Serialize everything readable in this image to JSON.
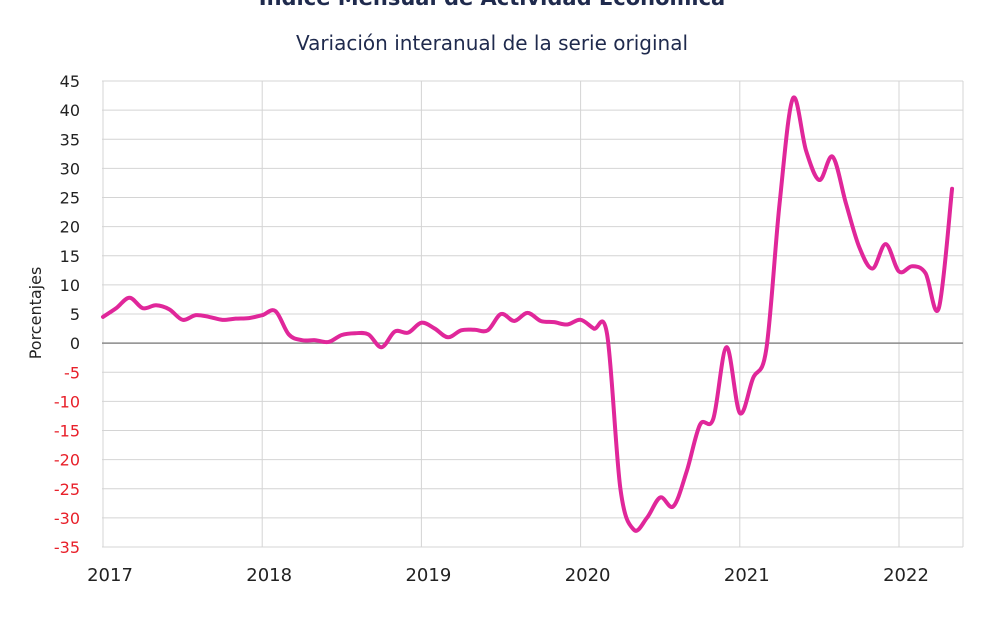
{
  "chart_data": {
    "type": "line",
    "title": "Índice Mensual de Actividad Económica",
    "subtitle": "Variación interanual de la serie original",
    "ylabel": "Porcentajes",
    "ylim": [
      -35,
      45
    ],
    "ytick_step": 5,
    "x_tick_labels": [
      "2017",
      "2018",
      "2019",
      "2020",
      "2021",
      "2022"
    ],
    "grid": true,
    "colors": {
      "series": "#e0279a",
      "negative_tick": "#e8202a",
      "positive_tick": "#222222",
      "grid": "#d4d4d4",
      "zero_line": "#8a8a8a",
      "title": "#1f2a4d"
    },
    "series": [
      {
        "x": [
          "2017-01",
          "2017-02",
          "2017-03",
          "2017-04",
          "2017-05",
          "2017-06",
          "2017-07",
          "2017-08",
          "2017-09",
          "2017-10",
          "2017-11",
          "2017-12",
          "2018-01",
          "2018-02",
          "2018-03",
          "2018-04",
          "2018-05",
          "2018-06",
          "2018-07",
          "2018-08",
          "2018-09",
          "2018-10",
          "2018-11",
          "2018-12",
          "2019-01",
          "2019-02",
          "2019-03",
          "2019-04",
          "2019-05",
          "2019-06",
          "2019-07",
          "2019-08",
          "2019-09",
          "2019-10",
          "2019-11",
          "2019-12",
          "2020-01",
          "2020-02",
          "2020-03",
          "2020-04",
          "2020-05",
          "2020-06",
          "2020-07",
          "2020-08",
          "2020-09",
          "2020-10",
          "2020-11",
          "2020-12",
          "2021-01",
          "2021-02",
          "2021-03",
          "2021-04",
          "2021-05",
          "2021-06",
          "2021-07",
          "2021-08",
          "2021-09",
          "2021-10",
          "2021-11",
          "2021-12",
          "2022-01",
          "2022-02",
          "2022-03",
          "2022-04",
          "2022-05"
        ],
        "values": [
          4.5,
          6.0,
          7.8,
          6.0,
          6.5,
          5.8,
          4.0,
          4.8,
          4.5,
          4.0,
          4.2,
          4.3,
          4.8,
          5.5,
          1.5,
          0.5,
          0.5,
          0.2,
          1.4,
          1.7,
          1.5,
          -0.7,
          2.0,
          1.8,
          3.5,
          2.5,
          1.0,
          2.2,
          2.3,
          2.2,
          5.0,
          3.8,
          5.2,
          3.8,
          3.6,
          3.2,
          4.0,
          2.5,
          1.5,
          -25.0,
          -32.0,
          -30.0,
          -26.5,
          -28.0,
          -22.0,
          -14.0,
          -13.0,
          -0.7,
          -12.0,
          -6.0,
          -1.0,
          24.0,
          42.0,
          33.0,
          28.0,
          32.0,
          24.0,
          16.5,
          12.8,
          17.0,
          12.3,
          13.2,
          12.0,
          6.0,
          26.5
        ]
      }
    ]
  }
}
